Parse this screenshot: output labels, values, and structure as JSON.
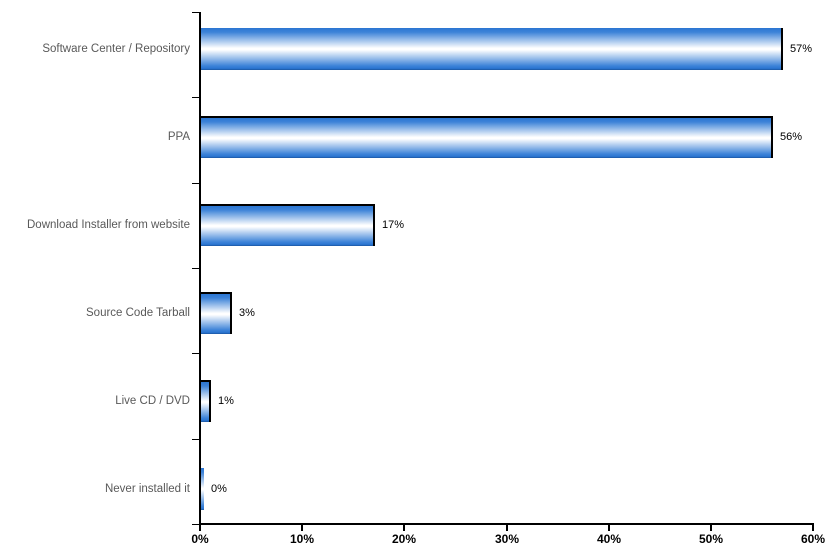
{
  "chart_data": {
    "type": "bar",
    "orientation": "horizontal",
    "title": "",
    "xlabel": "",
    "ylabel": "",
    "categories": [
      "Software Center / Repository",
      "PPA",
      "Download Installer from website",
      "Source Code Tarball",
      "Live CD / DVD",
      "Never installed it"
    ],
    "values": [
      57,
      56,
      17,
      3,
      1,
      0
    ],
    "value_labels": [
      "57%",
      "56%",
      "17%",
      "3%",
      "1%",
      "0%"
    ],
    "x_tick_labels": [
      "0%",
      "10%",
      "20%",
      "30%",
      "40%",
      "50%",
      "60%"
    ],
    "xlim": [
      0,
      60
    ],
    "grid": false,
    "legend": null,
    "style": {
      "background": "#ffffff",
      "axis_color": "#000000",
      "bar_blue": "#2B76D2",
      "bar_highlight": "#FFFFFF",
      "bar_bottom_edge": "#1A55A0",
      "bar_border": "#000000",
      "category_text_color": "#595959",
      "value_text_color": "#000000",
      "tick_label_color": "#000000"
    }
  }
}
